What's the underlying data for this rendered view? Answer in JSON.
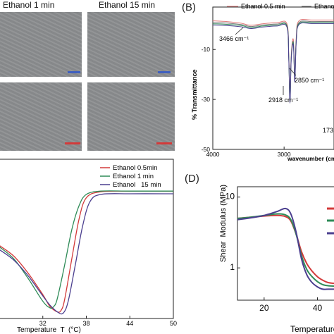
{
  "panelA": {
    "labels": [
      "Ethanol 1 min",
      "Ethanol 15 min"
    ],
    "scale_colors": [
      "#3f5fbf",
      "#d33a3a"
    ]
  },
  "panelB": {
    "panel_label": "(B)",
    "legend": [
      {
        "name": "Ethanol 0.5 min",
        "color": "#e07a7a"
      },
      {
        "name": "Ethanol",
        "color": "#7a7a7a"
      }
    ],
    "ylabel": "% Transmittance",
    "xlabel": "wavenumber (cm",
    "annotations": [
      "3466 cm⁻¹",
      "2918 cm⁻¹",
      "2850 cm⁻¹",
      "173"
    ]
  },
  "panelC": {
    "legend_colors": {
      "Ethanol 0.5min": "#d33a3a",
      "Ethanol 1 min": "#2e8b57",
      "Ethanol   15 min": "#4b3f8f"
    }
  },
  "panelD": {
    "panel_label": "(D)",
    "ylabel": "Shear  Modulus (MPa)",
    "xlabel": "Temperature"
  },
  "chart_data": [
    {
      "type": "line",
      "panel": "B",
      "xlabel": "wavenumber (cm",
      "ylabel": "% Transmittance",
      "x_ticks": [
        4000,
        3000
      ],
      "y_ticks": [
        -10,
        -30,
        -50
      ],
      "xlim": [
        4000,
        2300
      ],
      "ylim": [
        -50,
        7
      ],
      "series": [
        {
          "name": "Ethanol 0.5 min",
          "color": "#e07a7a",
          "x": [
            4000,
            3800,
            3600,
            3466,
            3300,
            3100,
            2960,
            2935,
            2918,
            2900,
            2870,
            2850,
            2830,
            2790,
            2600,
            2300
          ],
          "y": [
            1.5,
            1.2,
            0.5,
            -0.3,
            0.3,
            0.7,
            0.3,
            -12,
            -29,
            -12,
            -6,
            -21,
            -5,
            1.5,
            1.8,
            1.8
          ]
        },
        {
          "name": "Ethanol",
          "color": "#7a7a7a",
          "x": [
            4000,
            3800,
            3600,
            3466,
            3300,
            3100,
            2960,
            2935,
            2918,
            2900,
            2870,
            2850,
            2830,
            2790,
            2600,
            2300
          ],
          "y": [
            0.8,
            0.6,
            0,
            -0.8,
            -0.2,
            0.2,
            -0.3,
            -13,
            -30.5,
            -13,
            -7,
            -22,
            -6,
            0.8,
            1.2,
            1.2
          ]
        },
        {
          "color": "#2e8b57",
          "x": [
            4000,
            3800,
            3600,
            3466,
            3300,
            3100,
            2960,
            2935,
            2918,
            2900,
            2870,
            2850,
            2830,
            2790,
            2600,
            2300
          ],
          "y": [
            0.3,
            0.1,
            -0.4,
            -1.2,
            -0.6,
            -0.2,
            -0.6,
            -13.5,
            -31,
            -13.5,
            -7.5,
            -22.5,
            -6.5,
            0.4,
            0.8,
            0.8
          ]
        },
        {
          "color": "#4b3f8f",
          "x": [
            4000,
            3800,
            3600,
            3466,
            3300,
            3100,
            2960,
            2935,
            2918,
            2900,
            2870,
            2850,
            2830,
            2790,
            2600,
            2300
          ],
          "y": [
            -0.2,
            -0.4,
            -0.9,
            -1.6,
            -1.0,
            -0.6,
            -1.0,
            -14,
            -31.5,
            -14,
            -8,
            -23,
            -7,
            0,
            0.4,
            0.4
          ]
        }
      ]
    },
    {
      "type": "line",
      "panel": "C",
      "xlabel": "Temperature  T  (°C)",
      "x_ticks": [
        32,
        38,
        44,
        50
      ],
      "xlim": [
        26,
        50
      ],
      "ylim": [
        -9,
        3
      ],
      "series": [
        {
          "name": "Ethanol 0.5min",
          "color": "#d33a3a",
          "x": [
            26,
            28,
            30,
            32,
            33,
            34,
            34.5,
            35,
            36,
            37,
            38,
            40,
            44,
            50
          ],
          "y": [
            -3.5,
            -4.3,
            -5.6,
            -7.2,
            -8.1,
            -8.5,
            -8.4,
            -7.6,
            -4.5,
            -1.5,
            0.1,
            0.55,
            0.6,
            0.6
          ]
        },
        {
          "name": "Ethanol 1 min",
          "color": "#2e8b57",
          "x": [
            26,
            28,
            30,
            32,
            33,
            33.5,
            34,
            35,
            36,
            37,
            38,
            40,
            44,
            50
          ],
          "y": [
            -3.6,
            -4.5,
            -6.0,
            -7.7,
            -8.2,
            -8.1,
            -7.5,
            -5.0,
            -2.3,
            -0.5,
            0.35,
            0.6,
            0.6,
            0.6
          ]
        },
        {
          "name": "Ethanol   15 min",
          "color": "#4b3f8f",
          "x": [
            26,
            28,
            30,
            32,
            33,
            34,
            34.8,
            35.5,
            36.5,
            37.5,
            38.5,
            40,
            44,
            50
          ],
          "y": [
            -3.8,
            -4.6,
            -5.8,
            -7.3,
            -8.0,
            -8.5,
            -8.6,
            -7.7,
            -4.9,
            -2.0,
            -0.2,
            0.35,
            0.4,
            0.4
          ]
        }
      ]
    },
    {
      "type": "line",
      "panel": "D",
      "ylabel": "Shear  Modulus (MPa)",
      "xlabel": "Temperature",
      "x_ticks": [
        20,
        40
      ],
      "y_ticks": [
        10,
        1
      ],
      "y_scale": "log",
      "xlim": [
        10,
        47
      ],
      "ylim": [
        0.35,
        14
      ],
      "series": [
        {
          "color": "#d33a3a",
          "x": [
            10,
            15,
            20,
            25,
            28,
            30,
            32,
            34,
            36,
            38,
            40,
            42,
            44,
            47
          ],
          "y": [
            5.0,
            5.2,
            5.4,
            5.5,
            5.3,
            4.6,
            3.0,
            1.7,
            1.15,
            0.9,
            0.75,
            0.67,
            0.62,
            0.6
          ]
        },
        {
          "color": "#2e8b57",
          "x": [
            10,
            15,
            20,
            25,
            28,
            30,
            32,
            34,
            36,
            38,
            40,
            42,
            44,
            47
          ],
          "y": [
            5.0,
            5.2,
            5.5,
            5.8,
            5.6,
            4.8,
            3.0,
            1.5,
            0.95,
            0.75,
            0.64,
            0.58,
            0.56,
            0.55
          ]
        },
        {
          "color": "#4b3f8f",
          "x": [
            10,
            15,
            20,
            25,
            28,
            30,
            32,
            34,
            36,
            38,
            40,
            42,
            44,
            47
          ],
          "y": [
            4.8,
            5.1,
            5.5,
            6.3,
            6.9,
            5.8,
            3.2,
            1.35,
            0.8,
            0.62,
            0.54,
            0.5,
            0.5,
            0.5
          ]
        }
      ]
    }
  ]
}
